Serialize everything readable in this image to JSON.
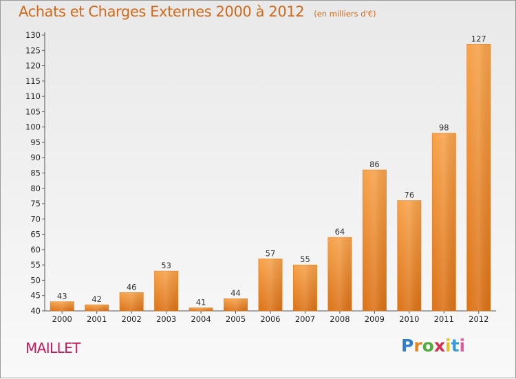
{
  "header": {
    "title": "Achats et Charges Externes 2000 à 2012",
    "unit": "(en milliers d'€)"
  },
  "footer": {
    "commune": "MAILLET",
    "brand_letters": [
      "P",
      "r",
      "o",
      "x",
      "i",
      "t",
      "i"
    ],
    "brand_colors": [
      "#2f7fd0",
      "#e8861b",
      "#4fae3c",
      "#d62f4f",
      "#e8c21b",
      "#3a9ad9",
      "#e85a9a"
    ]
  },
  "chart_data": {
    "type": "bar",
    "title": "Achats et Charges Externes 2000 à 2012",
    "subtitle": "(en milliers d'€)",
    "categories": [
      "2000",
      "2001",
      "2002",
      "2003",
      "2004",
      "2005",
      "2006",
      "2007",
      "2008",
      "2009",
      "2010",
      "2011",
      "2012"
    ],
    "values": [
      43,
      42,
      46,
      53,
      41,
      44,
      57,
      55,
      64,
      86,
      76,
      98,
      127
    ],
    "ylim": [
      40,
      130
    ],
    "yticks": [
      40,
      45,
      50,
      55,
      60,
      65,
      70,
      75,
      80,
      85,
      90,
      95,
      100,
      105,
      110,
      115,
      120,
      125,
      130
    ],
    "grid": false,
    "data_labels": true,
    "bar_color": "#f0922a"
  }
}
